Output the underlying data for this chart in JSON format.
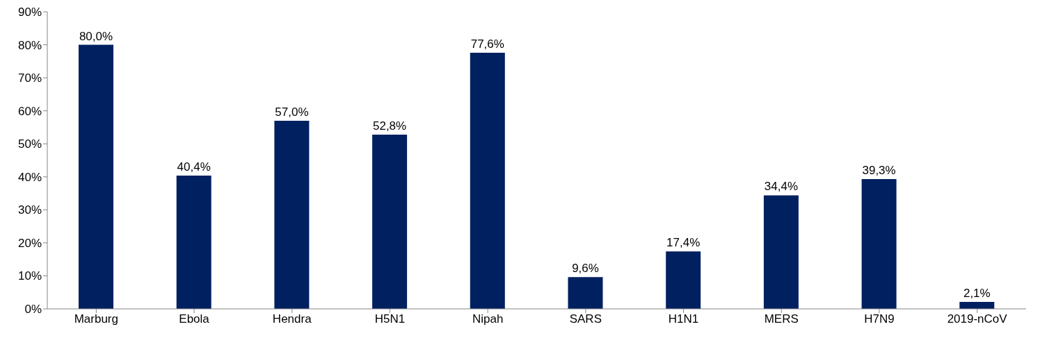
{
  "chart_data": {
    "type": "bar",
    "categories": [
      "Marburg",
      "Ebola",
      "Hendra",
      "H5N1",
      "Nipah",
      "SARS",
      "H1N1",
      "MERS",
      "H7N9",
      "2019-nCoV"
    ],
    "values": [
      80.0,
      40.4,
      57.0,
      52.8,
      77.6,
      9.6,
      17.4,
      34.4,
      39.3,
      2.1
    ],
    "value_labels": [
      "80,0%",
      "40,4%",
      "57,0%",
      "52,8%",
      "77,6%",
      "9,6%",
      "17,4%",
      "34,4%",
      "39,3%",
      "2,1%"
    ],
    "color": "#002060",
    "ylim": [
      0,
      90
    ],
    "yticks": [
      {
        "value": 0,
        "label": "0%"
      },
      {
        "value": 10,
        "label": "10%"
      },
      {
        "value": 20,
        "label": "20%"
      },
      {
        "value": 30,
        "label": "30%"
      },
      {
        "value": 40,
        "label": "40%"
      },
      {
        "value": 50,
        "label": "50%"
      },
      {
        "value": 60,
        "label": "60%"
      },
      {
        "value": 70,
        "label": "70%"
      },
      {
        "value": 80,
        "label": "80%"
      },
      {
        "value": 90,
        "label": "90%"
      }
    ],
    "grid": false,
    "legend": false
  }
}
